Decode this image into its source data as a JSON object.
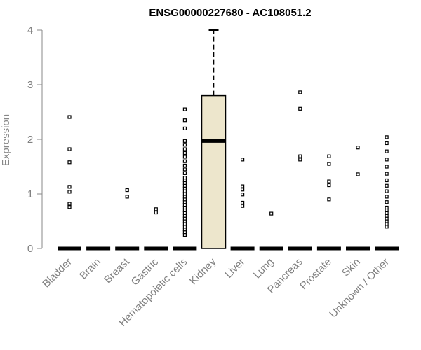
{
  "chart_data": {
    "type": "boxplot",
    "title": "ENSG00000227680 - AC108051.2",
    "ylabel": "Expression",
    "xlabel": "",
    "ylim": [
      0,
      4
    ],
    "yticks": [
      0,
      1,
      2,
      3,
      4
    ],
    "categories": [
      "Bladder",
      "Brain",
      "Breast",
      "Gastric",
      "Hematopoietic cells",
      "Kidney",
      "Liver",
      "Lung",
      "Pancreas",
      "Prostate",
      "Skin",
      "Unknown / Other"
    ],
    "box_color": "#ede6cc",
    "boxes": [
      {
        "category": "Bladder",
        "q1": 0,
        "median": 0,
        "q3": 0,
        "whisker_low": 0,
        "whisker_high": 0,
        "outliers": [
          0.76,
          0.82,
          1.04,
          1.13,
          1.58,
          1.82,
          2.41
        ]
      },
      {
        "category": "Brain",
        "q1": 0,
        "median": 0,
        "q3": 0,
        "whisker_low": 0,
        "whisker_high": 0,
        "outliers": []
      },
      {
        "category": "Breast",
        "q1": 0,
        "median": 0,
        "q3": 0,
        "whisker_low": 0,
        "whisker_high": 0,
        "outliers": [
          0.95,
          1.07
        ]
      },
      {
        "category": "Gastric",
        "q1": 0,
        "median": 0,
        "q3": 0,
        "whisker_low": 0,
        "whisker_high": 0,
        "outliers": [
          0.66,
          0.72
        ]
      },
      {
        "category": "Hematopoietic cells",
        "q1": 0,
        "median": 0,
        "q3": 0,
        "whisker_low": 0,
        "whisker_high": 0,
        "outliers": [
          0.25,
          0.3,
          0.35,
          0.4,
          0.45,
          0.5,
          0.55,
          0.6,
          0.65,
          0.7,
          0.75,
          0.8,
          0.85,
          0.9,
          0.95,
          1.0,
          1.05,
          1.1,
          1.15,
          1.2,
          1.25,
          1.3,
          1.38,
          1.45,
          1.52,
          1.6,
          1.68,
          1.75,
          1.82,
          1.9,
          1.97,
          2.2,
          2.35,
          2.55
        ]
      },
      {
        "category": "Kidney",
        "q1": 0,
        "median": 1.97,
        "q3": 2.8,
        "whisker_low": 0,
        "whisker_high": 4.0,
        "outliers": []
      },
      {
        "category": "Liver",
        "q1": 0,
        "median": 0,
        "q3": 0,
        "whisker_low": 0,
        "whisker_high": 0,
        "outliers": [
          0.78,
          0.84,
          0.99,
          1.08,
          1.14,
          1.63
        ]
      },
      {
        "category": "Lung",
        "q1": 0,
        "median": 0,
        "q3": 0,
        "whisker_low": 0,
        "whisker_high": 0,
        "outliers": [
          0.64
        ]
      },
      {
        "category": "Pancreas",
        "q1": 0,
        "median": 0,
        "q3": 0,
        "whisker_low": 0,
        "whisker_high": 0,
        "outliers": [
          1.63,
          1.69,
          2.56,
          2.86
        ]
      },
      {
        "category": "Prostate",
        "q1": 0,
        "median": 0,
        "q3": 0,
        "whisker_low": 0,
        "whisker_high": 0,
        "outliers": [
          0.9,
          1.16,
          1.23,
          1.55,
          1.69
        ]
      },
      {
        "category": "Skin",
        "q1": 0,
        "median": 0,
        "q3": 0,
        "whisker_low": 0,
        "whisker_high": 0,
        "outliers": [
          1.36,
          1.85
        ]
      },
      {
        "category": "Unknown / Other",
        "q1": 0,
        "median": 0,
        "q3": 0,
        "whisker_low": 0,
        "whisker_high": 0,
        "outliers": [
          0.4,
          0.45,
          0.5,
          0.55,
          0.6,
          0.65,
          0.7,
          0.75,
          0.85,
          0.95,
          1.05,
          1.15,
          1.25,
          1.37,
          1.5,
          1.63,
          1.78,
          1.93,
          2.04
        ]
      }
    ],
    "grid": false,
    "legend": "none"
  }
}
